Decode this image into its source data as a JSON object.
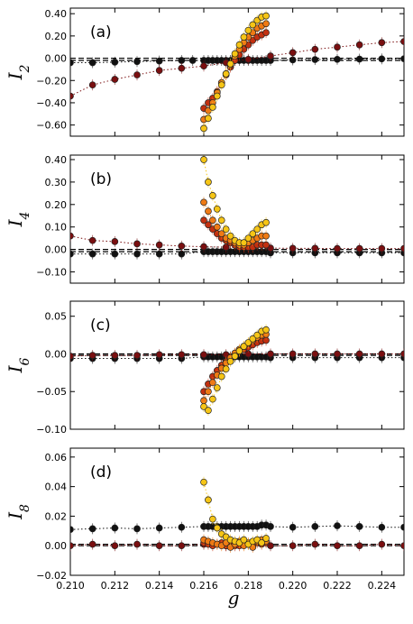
{
  "figure": {
    "xlabel": "g"
  },
  "chart_data": [
    {
      "type": "scatter",
      "panel_label": "(a)",
      "ylabel_base": "I",
      "ylabel_sub": "2",
      "xlim": [
        0.21,
        0.225
      ],
      "ylim": [
        -0.7,
        0.45
      ],
      "yticks": [
        -0.6,
        -0.4,
        -0.2,
        0.0,
        0.2,
        0.4
      ],
      "ytick_labels": [
        "−0.60",
        "−0.40",
        "−0.20",
        "0.00",
        "0.20",
        "0.40"
      ],
      "show_xtick_labels": false,
      "hlines": [
        0.0,
        -0.02
      ],
      "series": [
        {
          "color": "#111111",
          "x": [
            0.21,
            0.211,
            0.212,
            0.213,
            0.214,
            0.215,
            0.2155,
            0.216,
            0.2162,
            0.2164,
            0.2166,
            0.2168,
            0.217,
            0.2172,
            0.2174,
            0.2176,
            0.2178,
            0.218,
            0.2182,
            0.2184,
            0.2186,
            0.2188,
            0.219,
            0.22,
            0.221,
            0.222,
            0.223,
            0.224,
            0.225
          ],
          "y": [
            -0.04,
            -0.04,
            -0.035,
            -0.03,
            -0.025,
            -0.02,
            -0.02,
            -0.02,
            -0.02,
            -0.02,
            -0.02,
            -0.02,
            -0.02,
            -0.02,
            -0.02,
            -0.02,
            -0.02,
            -0.02,
            -0.02,
            -0.02,
            -0.02,
            -0.02,
            -0.02,
            -0.015,
            -0.012,
            -0.01,
            -0.008,
            -0.006,
            -0.005
          ]
        },
        {
          "color": "#7a0f10",
          "x": [
            0.21,
            0.211,
            0.212,
            0.213,
            0.214,
            0.215,
            0.216,
            0.217,
            0.218,
            0.219,
            0.22,
            0.221,
            0.222,
            0.223,
            0.224,
            0.225
          ],
          "y": [
            -0.34,
            -0.24,
            -0.19,
            -0.15,
            -0.11,
            -0.09,
            -0.07,
            -0.04,
            -0.01,
            0.02,
            0.05,
            0.08,
            0.1,
            0.12,
            0.14,
            0.15
          ]
        },
        {
          "color": "#c23010",
          "x": [
            0.216,
            0.2162,
            0.2164,
            0.2166,
            0.2168,
            0.217,
            0.2172,
            0.2174,
            0.2176,
            0.2178,
            0.218,
            0.2182,
            0.2184,
            0.2186,
            0.2188
          ],
          "y": [
            -0.45,
            -0.4,
            -0.36,
            -0.3,
            -0.22,
            -0.15,
            -0.08,
            -0.02,
            0.03,
            0.08,
            0.12,
            0.16,
            0.19,
            0.21,
            0.23
          ]
        },
        {
          "color": "#ef7a14",
          "x": [
            0.216,
            0.2162,
            0.2164,
            0.2166,
            0.2168,
            0.217,
            0.2172,
            0.2174,
            0.2176,
            0.2178,
            0.218,
            0.2182,
            0.2184,
            0.2186,
            0.2188
          ],
          "y": [
            -0.55,
            -0.47,
            -0.4,
            -0.31,
            -0.22,
            -0.14,
            -0.06,
            0.02,
            0.08,
            0.14,
            0.19,
            0.23,
            0.27,
            0.29,
            0.31
          ]
        },
        {
          "color": "#f6c515",
          "x": [
            0.216,
            0.2162,
            0.2164,
            0.2166,
            0.2168,
            0.217,
            0.2172,
            0.2174,
            0.2176,
            0.2178,
            0.218,
            0.2182,
            0.2184,
            0.2186,
            0.2188
          ],
          "y": [
            -0.63,
            -0.54,
            -0.44,
            -0.34,
            -0.24,
            -0.14,
            -0.05,
            0.04,
            0.12,
            0.19,
            0.25,
            0.3,
            0.34,
            0.37,
            0.38
          ]
        }
      ]
    },
    {
      "type": "scatter",
      "panel_label": "(b)",
      "ylabel_base": "I",
      "ylabel_sub": "4",
      "xlim": [
        0.21,
        0.225
      ],
      "ylim": [
        -0.15,
        0.42
      ],
      "yticks": [
        -0.1,
        0.0,
        0.1,
        0.2,
        0.3,
        0.4
      ],
      "ytick_labels": [
        "−0.10",
        "0.00",
        "0.10",
        "0.20",
        "0.30",
        "0.40"
      ],
      "show_xtick_labels": false,
      "hlines": [
        0.0,
        -0.01
      ],
      "series": [
        {
          "color": "#111111",
          "x": [
            0.21,
            0.211,
            0.212,
            0.213,
            0.214,
            0.215,
            0.216,
            0.2162,
            0.2164,
            0.2166,
            0.2168,
            0.217,
            0.2172,
            0.2174,
            0.2176,
            0.2178,
            0.218,
            0.2182,
            0.2184,
            0.2186,
            0.2188,
            0.219,
            0.22,
            0.221,
            0.222,
            0.223,
            0.224,
            0.225
          ],
          "y": [
            -0.02,
            -0.02,
            -0.02,
            -0.02,
            -0.02,
            -0.02,
            -0.01,
            -0.01,
            -0.01,
            -0.01,
            -0.01,
            -0.01,
            -0.01,
            -0.01,
            -0.01,
            -0.01,
            -0.01,
            -0.01,
            -0.01,
            -0.01,
            -0.01,
            -0.015,
            -0.015,
            -0.015,
            -0.015,
            -0.015,
            -0.015,
            -0.015
          ]
        },
        {
          "color": "#7a0f10",
          "x": [
            0.21,
            0.211,
            0.212,
            0.213,
            0.214,
            0.215,
            0.216,
            0.217,
            0.218,
            0.219,
            0.22,
            0.221,
            0.222,
            0.223,
            0.224,
            0.225
          ],
          "y": [
            0.06,
            0.04,
            0.035,
            0.025,
            0.02,
            0.015,
            0.012,
            0.01,
            0.008,
            0.006,
            0.005,
            0.005,
            0.004,
            0.004,
            0.004,
            0.004
          ]
        },
        {
          "color": "#c23010",
          "x": [
            0.216,
            0.2162,
            0.2164,
            0.2166,
            0.2168,
            0.217,
            0.2172,
            0.2174,
            0.2176,
            0.2178,
            0.218,
            0.2182,
            0.2184,
            0.2186,
            0.2188
          ],
          "y": [
            0.13,
            0.11,
            0.09,
            0.07,
            0.05,
            0.04,
            0.03,
            0.02,
            0.01,
            0.01,
            0.01,
            0.01,
            0.02,
            0.02,
            0.02
          ]
        },
        {
          "color": "#ef7a14",
          "x": [
            0.216,
            0.2162,
            0.2164,
            0.2166,
            0.2168,
            0.217,
            0.2172,
            0.2174,
            0.2176,
            0.2178,
            0.218,
            0.2182,
            0.2184,
            0.2186,
            0.2188
          ],
          "y": [
            0.21,
            0.17,
            0.13,
            0.1,
            0.07,
            0.05,
            0.04,
            0.03,
            0.02,
            0.02,
            0.03,
            0.04,
            0.05,
            0.06,
            0.06
          ]
        },
        {
          "color": "#f6c515",
          "x": [
            0.216,
            0.2162,
            0.2164,
            0.2166,
            0.2168,
            0.217,
            0.2172,
            0.2174,
            0.2176,
            0.2178,
            0.218,
            0.2182,
            0.2184,
            0.2186,
            0.2188
          ],
          "y": [
            0.4,
            0.3,
            0.24,
            0.18,
            0.13,
            0.09,
            0.06,
            0.04,
            0.03,
            0.03,
            0.05,
            0.07,
            0.09,
            0.11,
            0.12
          ]
        }
      ]
    },
    {
      "type": "scatter",
      "panel_label": "(c)",
      "ylabel_base": "I",
      "ylabel_sub": "6",
      "xlim": [
        0.21,
        0.225
      ],
      "ylim": [
        -0.1,
        0.07
      ],
      "yticks": [
        -0.1,
        -0.05,
        0.0,
        0.05
      ],
      "ytick_labels": [
        "−0.10",
        "−0.05",
        "0.00",
        "0.05"
      ],
      "show_xtick_labels": false,
      "hlines": [
        0.0,
        -0.002
      ],
      "series": [
        {
          "color": "#111111",
          "x": [
            0.21,
            0.211,
            0.212,
            0.213,
            0.214,
            0.215,
            0.216,
            0.2162,
            0.2164,
            0.2166,
            0.2168,
            0.217,
            0.2172,
            0.2174,
            0.2176,
            0.2178,
            0.218,
            0.2182,
            0.2184,
            0.2186,
            0.2188,
            0.219,
            0.22,
            0.221,
            0.222,
            0.223,
            0.224,
            0.225
          ],
          "y": [
            -0.006,
            -0.006,
            -0.006,
            -0.006,
            -0.006,
            -0.006,
            -0.004,
            -0.004,
            -0.004,
            -0.004,
            -0.004,
            -0.004,
            -0.004,
            -0.004,
            -0.004,
            -0.004,
            -0.004,
            -0.004,
            -0.004,
            -0.004,
            -0.004,
            -0.005,
            -0.005,
            -0.005,
            -0.005,
            -0.005,
            -0.005,
            -0.005
          ]
        },
        {
          "color": "#7a0f10",
          "x": [
            0.21,
            0.211,
            0.212,
            0.213,
            0.214,
            0.215,
            0.216,
            0.217,
            0.218,
            0.219,
            0.22,
            0.221,
            0.222,
            0.223,
            0.224,
            0.225
          ],
          "y": [
            -0.003,
            -0.002,
            -0.002,
            -0.002,
            -0.001,
            -0.001,
            -0.001,
            -0.001,
            0.0,
            0.0,
            0.0,
            0.0,
            0.0,
            0.0,
            0.0,
            0.0
          ]
        },
        {
          "color": "#c23010",
          "x": [
            0.216,
            0.2162,
            0.2164,
            0.2166,
            0.2168,
            0.217,
            0.2172,
            0.2174,
            0.2176,
            0.2178,
            0.218,
            0.2182,
            0.2184,
            0.2186,
            0.2188
          ],
          "y": [
            -0.05,
            -0.04,
            -0.03,
            -0.022,
            -0.015,
            -0.01,
            -0.005,
            0.0,
            0.003,
            0.006,
            0.009,
            0.012,
            0.015,
            0.017,
            0.018
          ]
        },
        {
          "color": "#ef7a14",
          "x": [
            0.216,
            0.2162,
            0.2164,
            0.2166,
            0.2168,
            0.217,
            0.2172,
            0.2174,
            0.2176,
            0.2178,
            0.218,
            0.2182,
            0.2184,
            0.2186,
            0.2188
          ],
          "y": [
            -0.062,
            -0.05,
            -0.038,
            -0.028,
            -0.019,
            -0.012,
            -0.005,
            0.001,
            0.006,
            0.01,
            0.014,
            0.018,
            0.022,
            0.025,
            0.026
          ]
        },
        {
          "color": "#f6c515",
          "x": [
            0.216,
            0.2162,
            0.2164,
            0.2166,
            0.2168,
            0.217,
            0.2172,
            0.2174,
            0.2176,
            0.2178,
            0.218,
            0.2182,
            0.2184,
            0.2186,
            0.2188
          ],
          "y": [
            -0.07,
            -0.075,
            -0.06,
            -0.045,
            -0.03,
            -0.02,
            -0.01,
            -0.003,
            0.004,
            0.01,
            0.015,
            0.02,
            0.025,
            0.03,
            0.032
          ]
        }
      ]
    },
    {
      "type": "scatter",
      "panel_label": "(d)",
      "ylabel_base": "I",
      "ylabel_sub": "8",
      "xlim": [
        0.21,
        0.225
      ],
      "ylim": [
        -0.02,
        0.066
      ],
      "yticks": [
        -0.02,
        0.0,
        0.02,
        0.04,
        0.06
      ],
      "ytick_labels": [
        "−0.02",
        "0.00",
        "0.02",
        "0.04",
        "0.06"
      ],
      "show_xtick_labels": true,
      "xticks": [
        0.21,
        0.212,
        0.214,
        0.216,
        0.218,
        0.22,
        0.222,
        0.224
      ],
      "xtick_labels": [
        "0.210",
        "0.212",
        "0.214",
        "0.216",
        "0.218",
        "0.220",
        "0.222",
        "0.224"
      ],
      "hlines": [
        0.0,
        0.001
      ],
      "series": [
        {
          "color": "#111111",
          "x": [
            0.21,
            0.211,
            0.212,
            0.213,
            0.214,
            0.215,
            0.216,
            0.2162,
            0.2164,
            0.2166,
            0.2168,
            0.217,
            0.2172,
            0.2174,
            0.2176,
            0.2178,
            0.218,
            0.2182,
            0.2184,
            0.2186,
            0.2188,
            0.219,
            0.22,
            0.221,
            0.222,
            0.223,
            0.224,
            0.225
          ],
          "y": [
            0.011,
            0.0115,
            0.012,
            0.0115,
            0.012,
            0.0125,
            0.013,
            0.013,
            0.013,
            0.013,
            0.013,
            0.013,
            0.013,
            0.013,
            0.013,
            0.013,
            0.013,
            0.013,
            0.013,
            0.014,
            0.014,
            0.013,
            0.0125,
            0.013,
            0.0135,
            0.013,
            0.0125,
            0.0125
          ]
        },
        {
          "color": "#7a0f10",
          "x": [
            0.21,
            0.211,
            0.212,
            0.213,
            0.214,
            0.215,
            0.216,
            0.217,
            0.218,
            0.219,
            0.22,
            0.221,
            0.222,
            0.223,
            0.224,
            0.225
          ],
          "y": [
            0.0,
            0.001,
            0.0,
            0.001,
            0.0,
            0.0,
            0.001,
            0.0,
            0.001,
            0.0,
            0.0,
            0.001,
            0.0,
            0.0,
            0.001,
            0.0
          ]
        },
        {
          "color": "#c23010",
          "x": [
            0.216,
            0.2162,
            0.2164,
            0.2166,
            0.2168,
            0.217,
            0.2172,
            0.2174,
            0.2176,
            0.2178,
            0.218,
            0.2182,
            0.2184,
            0.2186,
            0.2188
          ],
          "y": [
            0.002,
            0.001,
            0.0,
            0.001,
            0.002,
            0.0,
            0.001,
            0.0,
            0.0,
            0.002,
            0.001,
            0.0,
            0.002,
            0.001,
            0.002
          ]
        },
        {
          "color": "#ef7a14",
          "x": [
            0.216,
            0.2162,
            0.2164,
            0.2166,
            0.2168,
            0.217,
            0.2172,
            0.2174,
            0.2176,
            0.2178,
            0.218,
            0.2182,
            0.2184,
            0.2186,
            0.2188
          ],
          "y": [
            0.004,
            0.003,
            0.002,
            0.001,
            0.0,
            0.002,
            -0.001,
            0.001,
            0.003,
            0.0,
            0.002,
            -0.001,
            0.003,
            0.004,
            0.003
          ]
        },
        {
          "color": "#f6c515",
          "x": [
            0.216,
            0.2162,
            0.2164,
            0.2166,
            0.2168,
            0.217,
            0.2172,
            0.2174,
            0.2176,
            0.2178,
            0.218,
            0.2182,
            0.2184,
            0.2186,
            0.2188
          ],
          "y": [
            0.043,
            0.031,
            0.018,
            0.012,
            0.008,
            0.006,
            0.004,
            0.003,
            0.002,
            0.004,
            0.001,
            0.003,
            0.004,
            0.002,
            0.005
          ]
        }
      ]
    }
  ]
}
